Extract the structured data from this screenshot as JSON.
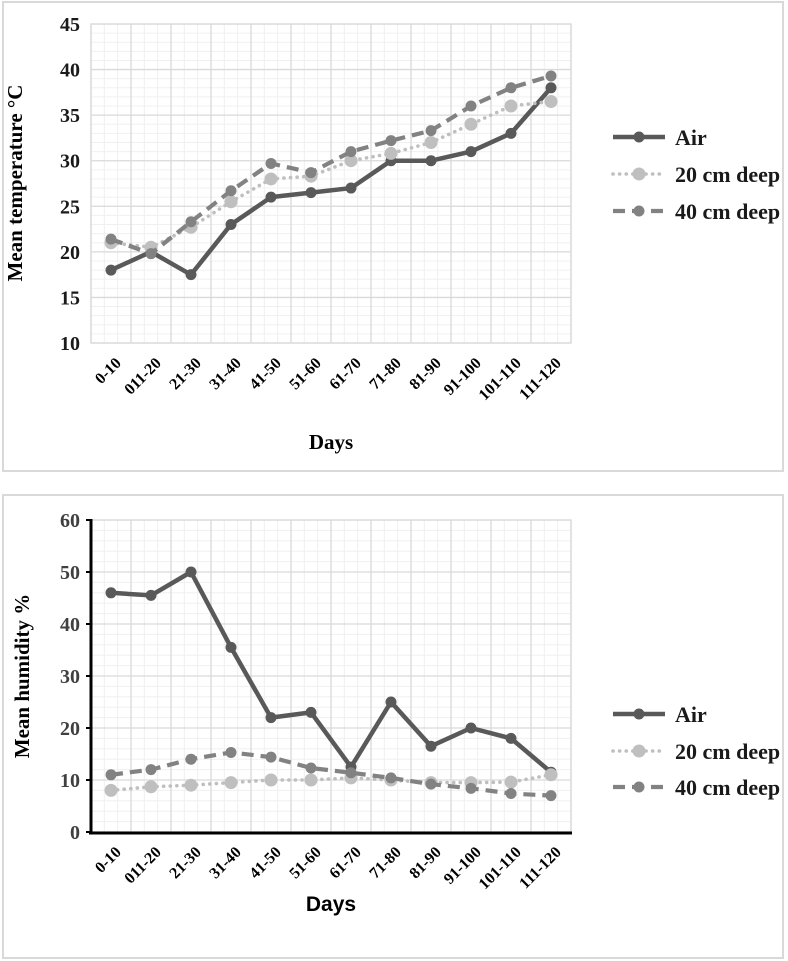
{
  "page": {
    "background": "#ffffff",
    "panel_border_color": "#d9d9d9",
    "gridline_major_color": "#d9d9d9",
    "gridline_minor_color": "#f0f0f0"
  },
  "chart_data": [
    {
      "id": "temperature",
      "type": "line",
      "title": "",
      "xlabel": "Days",
      "ylabel": "Mean temperature °C",
      "ylim": [
        10,
        45
      ],
      "ytick_step": 5,
      "yminor_step": 1,
      "yticks": [
        "10",
        "15",
        "20",
        "25",
        "30",
        "35",
        "40",
        "45"
      ],
      "grid": true,
      "legend_position": "right",
      "axis_label_color": "#1a1a1a",
      "categories": [
        "0-10",
        "011-20",
        "21-30",
        "31-40",
        "41-50",
        "51-60",
        "61-70",
        "71-80",
        "81-90",
        "91-100",
        "101-110",
        "111-120"
      ],
      "series": [
        {
          "name": "Air",
          "style": "solid",
          "color": "#595959",
          "values": [
            18,
            20,
            17.5,
            23,
            26,
            26.5,
            27,
            30,
            30,
            31,
            33,
            38
          ]
        },
        {
          "name": "20 cm deep",
          "style": "dotted",
          "color": "#bfbfbf",
          "values": [
            21,
            20.5,
            22.7,
            25.5,
            28,
            28.3,
            30,
            30.8,
            32,
            34,
            36,
            36.5
          ]
        },
        {
          "name": "40 cm deep",
          "style": "dashed",
          "color": "#828282",
          "values": [
            21.4,
            19.8,
            23.3,
            26.7,
            29.7,
            28.7,
            31,
            32.2,
            33.3,
            36,
            38,
            39.3
          ]
        }
      ]
    },
    {
      "id": "humidity",
      "type": "line",
      "title": "",
      "xlabel": "Days",
      "ylabel": "Mean humidity %",
      "ylim": [
        0,
        60
      ],
      "ytick_step": 10,
      "yminor_step": 2,
      "yticks": [
        "0",
        "10",
        "20",
        "30",
        "40",
        "50",
        "60"
      ],
      "grid": true,
      "legend_position": "right",
      "axis_label_color": "#404040",
      "categories": [
        "0-10",
        "011-20",
        "21-30",
        "31-40",
        "41-50",
        "51-60",
        "61-70",
        "71-80",
        "81-90",
        "91-100",
        "101-110",
        "111-120"
      ],
      "series": [
        {
          "name": "Air",
          "style": "solid",
          "color": "#595959",
          "values": [
            46,
            45.5,
            50,
            35.5,
            22,
            23,
            12.5,
            25,
            16.5,
            20,
            18,
            11.5
          ]
        },
        {
          "name": "20 cm deep",
          "style": "dotted",
          "color": "#bfbfbf",
          "values": [
            8,
            8.7,
            9,
            9.5,
            10,
            10,
            10.4,
            10,
            9.5,
            9.5,
            9.6,
            11
          ]
        },
        {
          "name": "40 cm deep",
          "style": "dashed",
          "color": "#828282",
          "values": [
            11,
            12,
            14,
            15.3,
            14.4,
            12.3,
            11.4,
            10.4,
            9.2,
            8.4,
            7.4,
            7
          ]
        }
      ]
    }
  ]
}
